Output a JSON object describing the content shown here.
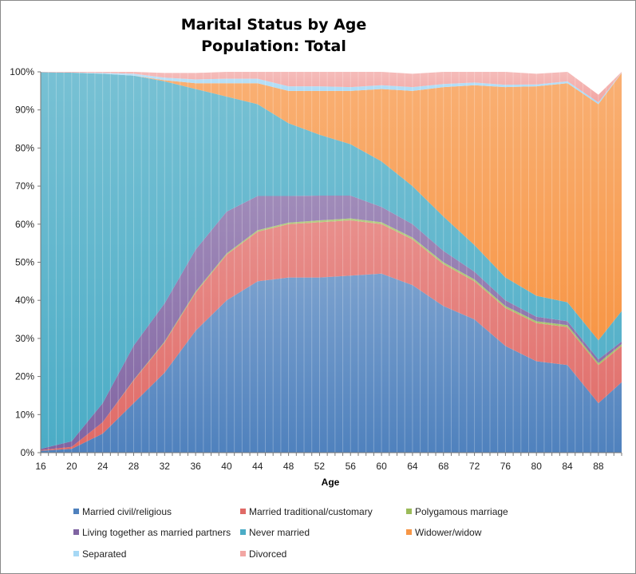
{
  "chart_data": {
    "type": "area",
    "stacking": "percent",
    "title": "Marital Status by Age",
    "subtitle": "Population: Total",
    "xlabel": "Age",
    "ylabel": "",
    "x_range": [
      16,
      91
    ],
    "ylim": [
      0,
      100
    ],
    "x_ticks": [
      16,
      20,
      24,
      28,
      32,
      36,
      40,
      44,
      48,
      52,
      56,
      60,
      64,
      68,
      72,
      76,
      80,
      84,
      88
    ],
    "y_ticks": [
      "0%",
      "10%",
      "20%",
      "30%",
      "40%",
      "50%",
      "60%",
      "70%",
      "80%",
      "90%",
      "100%"
    ],
    "legend_position": "bottom",
    "grid": false,
    "x": [
      16,
      20,
      24,
      28,
      32,
      36,
      40,
      44,
      48,
      52,
      56,
      60,
      64,
      68,
      72,
      76,
      80,
      84,
      88,
      91
    ],
    "series": [
      {
        "name": "Married civil/religious",
        "color": "#4f81bd",
        "values": [
          0.5,
          1,
          5,
          13,
          21,
          32,
          40,
          45,
          46,
          46,
          46.5,
          47,
          44,
          38.5,
          35,
          28,
          24,
          23,
          13,
          18.5
        ]
      },
      {
        "name": "Married traditional/customary",
        "color": "#e06a66",
        "values": [
          0.2,
          0.5,
          3,
          6,
          8,
          10,
          12,
          13,
          14,
          14.5,
          14.5,
          13,
          12,
          11,
          10,
          10,
          10,
          10,
          10,
          9.5
        ]
      },
      {
        "name": "Polygamous marriage",
        "color": "#9bbb59",
        "values": [
          0,
          0,
          0,
          0.1,
          0.2,
          0.3,
          0.3,
          0.4,
          0.4,
          0.5,
          0.5,
          0.5,
          0.5,
          0.5,
          0.5,
          0.5,
          0.5,
          0.5,
          0.5,
          0.5
        ]
      },
      {
        "name": "Living together as married partners",
        "color": "#8064a2",
        "values": [
          0.3,
          1.5,
          5,
          9,
          10,
          11,
          11,
          9,
          7,
          6.5,
          6,
          4,
          3.5,
          3,
          2,
          1.5,
          1.2,
          1,
          1,
          0.7
        ]
      },
      {
        "name": "Never married",
        "color": "#4bacc6",
        "values": [
          98.9,
          96.8,
          86.5,
          70.9,
          58.3,
          42.2,
          30.2,
          24.1,
          19.1,
          16,
          13.5,
          12,
          10,
          9,
          7,
          6,
          5.5,
          5,
          5,
          8
        ]
      },
      {
        "name": "Widower/widow",
        "color": "#f79646",
        "values": [
          0,
          0,
          0,
          0,
          0.3,
          1.5,
          3.5,
          5.5,
          8.5,
          11.5,
          14,
          19,
          25,
          34,
          42,
          50,
          55,
          57.5,
          62,
          62.5
        ]
      },
      {
        "name": "Separated",
        "color": "#a6d8f5",
        "values": [
          0,
          0,
          0.2,
          0.5,
          0.7,
          1,
          1.2,
          1.2,
          1.2,
          1.2,
          1,
          1,
          1,
          0.8,
          0.7,
          0.6,
          0.5,
          0.5,
          0.5,
          0.1
        ]
      },
      {
        "name": "Divorced",
        "color": "#f2a6a3",
        "values": [
          0.1,
          0.2,
          0.3,
          0.5,
          1.2,
          1.7,
          1.8,
          2.3,
          3.8,
          3.8,
          4,
          3.5,
          3.5,
          3.2,
          2.8,
          3.4,
          2.8,
          2.5,
          2,
          0.2
        ]
      }
    ]
  }
}
